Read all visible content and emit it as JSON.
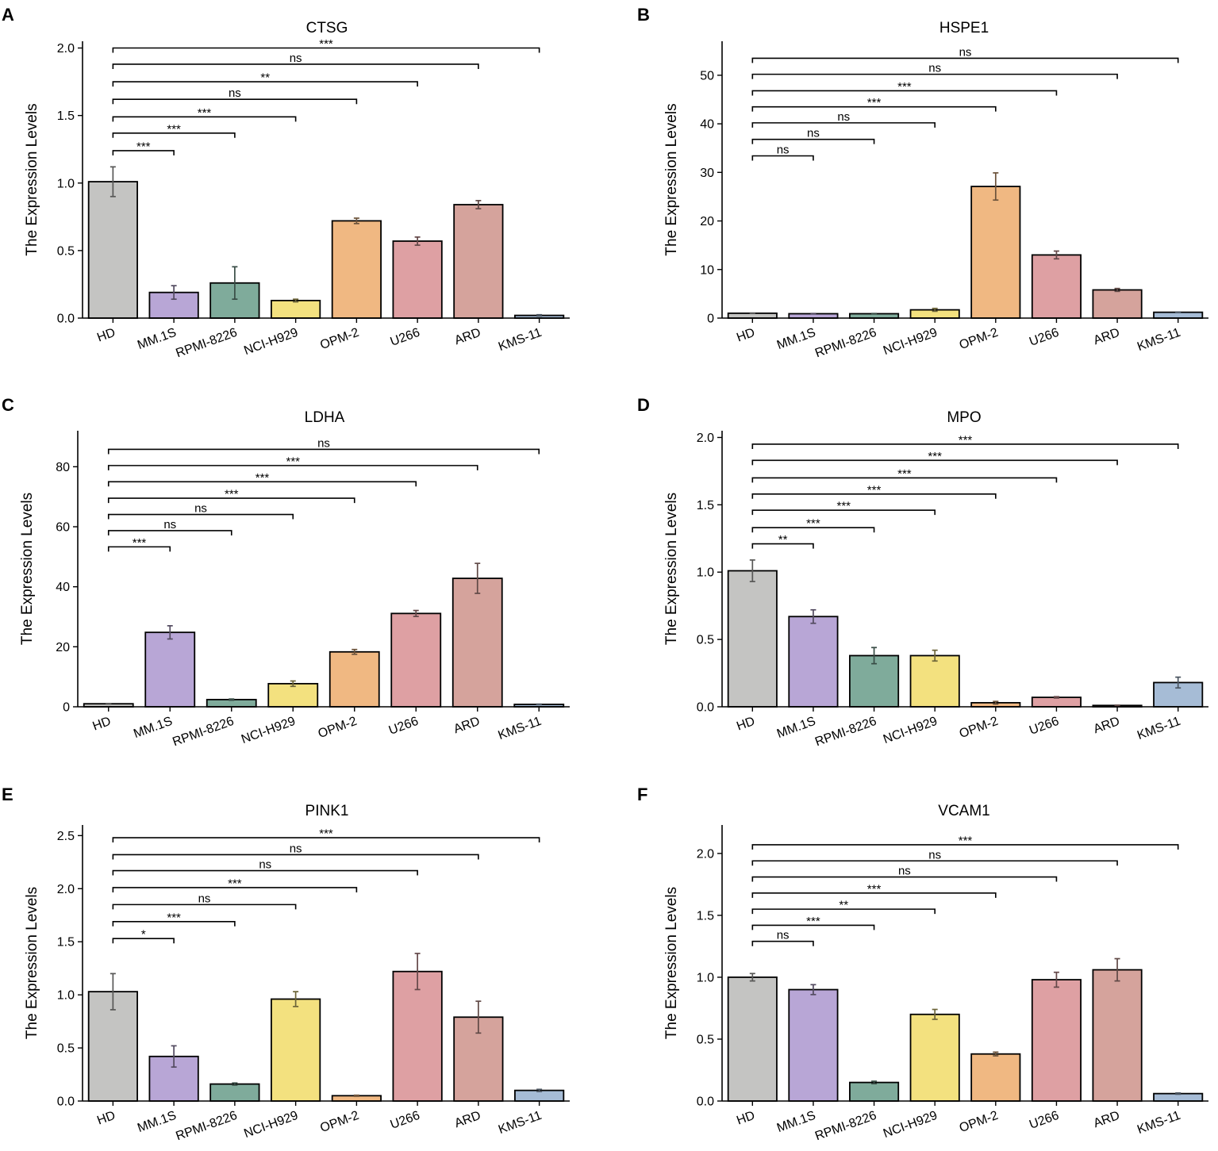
{
  "categories": [
    "HD",
    "MM.1S",
    "RPMI-8226",
    "NCI-H929",
    "OPM-2",
    "U266",
    "ARD",
    "KMS-11"
  ],
  "colors": [
    "#c4c4c2",
    "#b8a6d6",
    "#7fab9b",
    "#f3e17f",
    "#f0b882",
    "#dea0a3",
    "#d5a39c",
    "#a6bcd6"
  ],
  "chart_data": [
    {
      "panel": "A",
      "type": "bar",
      "title": "CTSG",
      "xlabel": "",
      "ylabel": "The Expression Levels",
      "ylim": [
        0,
        2.05
      ],
      "yticks": [
        "0.0",
        "0.5",
        "1.0",
        "1.5",
        "2.0"
      ],
      "values": [
        1.01,
        0.19,
        0.26,
        0.13,
        0.72,
        0.57,
        0.84,
        0.02
      ],
      "errors": [
        0.11,
        0.05,
        0.12,
        0.01,
        0.02,
        0.03,
        0.03,
        0.005
      ],
      "comparisons": [
        {
          "vs": "MM.1S",
          "y": 1.24,
          "label": "***"
        },
        {
          "vs": "RPMI-8226",
          "y": 1.37,
          "label": "***"
        },
        {
          "vs": "NCI-H929",
          "y": 1.49,
          "label": "***"
        },
        {
          "vs": "OPM-2",
          "y": 1.62,
          "label": "ns"
        },
        {
          "vs": "U266",
          "y": 1.75,
          "label": "**"
        },
        {
          "vs": "ARD",
          "y": 1.88,
          "label": "ns"
        },
        {
          "vs": "KMS-11",
          "y": 2.0,
          "label": "***"
        }
      ]
    },
    {
      "panel": "B",
      "type": "bar",
      "title": "HSPE1",
      "xlabel": "",
      "ylabel": "The Expression Levels",
      "ylim": [
        0,
        57
      ],
      "yticks": [
        "0",
        "10",
        "20",
        "30",
        "40",
        "50"
      ],
      "values": [
        1.0,
        0.9,
        0.9,
        1.7,
        27.1,
        13.0,
        5.8,
        1.2
      ],
      "errors": [
        0.05,
        0.05,
        0.05,
        0.3,
        2.8,
        0.8,
        0.3,
        0.05
      ],
      "comparisons": [
        {
          "vs": "MM.1S",
          "y": 33.4,
          "label": "ns"
        },
        {
          "vs": "RPMI-8226",
          "y": 36.8,
          "label": "ns"
        },
        {
          "vs": "NCI-H929",
          "y": 40.2,
          "label": "ns"
        },
        {
          "vs": "OPM-2",
          "y": 43.5,
          "label": "***"
        },
        {
          "vs": "U266",
          "y": 46.8,
          "label": "***"
        },
        {
          "vs": "ARD",
          "y": 50.2,
          "label": "ns"
        },
        {
          "vs": "KMS-11",
          "y": 53.5,
          "label": "ns"
        }
      ]
    },
    {
      "panel": "C",
      "type": "bar",
      "title": "LDHA",
      "xlabel": "",
      "ylabel": "The Expression Levels",
      "ylim": [
        0,
        92
      ],
      "yticks": [
        "0",
        "20",
        "40",
        "60",
        "80"
      ],
      "values": [
        1.0,
        24.8,
        2.4,
        7.7,
        18.3,
        31.1,
        42.8,
        0.8
      ],
      "errors": [
        0.1,
        2.2,
        0.2,
        0.9,
        0.8,
        1.0,
        5.0,
        0.1
      ],
      "comparisons": [
        {
          "vs": "MM.1S",
          "y": 53.3,
          "label": "***"
        },
        {
          "vs": "RPMI-8226",
          "y": 58.7,
          "label": "ns"
        },
        {
          "vs": "NCI-H929",
          "y": 64.1,
          "label": "ns"
        },
        {
          "vs": "OPM-2",
          "y": 69.5,
          "label": "***"
        },
        {
          "vs": "U266",
          "y": 75.0,
          "label": "***"
        },
        {
          "vs": "ARD",
          "y": 80.4,
          "label": "***"
        },
        {
          "vs": "KMS-11",
          "y": 85.8,
          "label": "ns"
        }
      ]
    },
    {
      "panel": "D",
      "type": "bar",
      "title": "MPO",
      "xlabel": "",
      "ylabel": "The Expression Levels",
      "ylim": [
        0,
        2.05
      ],
      "yticks": [
        "0.0",
        "0.5",
        "1.0",
        "1.5",
        "2.0"
      ],
      "values": [
        1.01,
        0.67,
        0.38,
        0.38,
        0.03,
        0.07,
        0.01,
        0.18
      ],
      "errors": [
        0.08,
        0.05,
        0.06,
        0.04,
        0.01,
        0.005,
        0.002,
        0.04
      ],
      "comparisons": [
        {
          "vs": "MM.1S",
          "y": 1.21,
          "label": "**"
        },
        {
          "vs": "RPMI-8226",
          "y": 1.33,
          "label": "***"
        },
        {
          "vs": "NCI-H929",
          "y": 1.46,
          "label": "***"
        },
        {
          "vs": "OPM-2",
          "y": 1.58,
          "label": "***"
        },
        {
          "vs": "U266",
          "y": 1.7,
          "label": "***"
        },
        {
          "vs": "ARD",
          "y": 1.83,
          "label": "***"
        },
        {
          "vs": "KMS-11",
          "y": 1.95,
          "label": "***"
        }
      ]
    },
    {
      "panel": "E",
      "type": "bar",
      "title": "PINK1",
      "xlabel": "",
      "ylabel": "The Expression Levels",
      "ylim": [
        0,
        2.6
      ],
      "yticks": [
        "0.0",
        "0.5",
        "1.0",
        "1.5",
        "2.0",
        "2.5"
      ],
      "values": [
        1.03,
        0.42,
        0.16,
        0.96,
        0.05,
        1.22,
        0.79,
        0.1
      ],
      "errors": [
        0.17,
        0.1,
        0.01,
        0.07,
        0.005,
        0.17,
        0.15,
        0.01
      ],
      "comparisons": [
        {
          "vs": "MM.1S",
          "y": 1.53,
          "label": "*"
        },
        {
          "vs": "RPMI-8226",
          "y": 1.69,
          "label": "***"
        },
        {
          "vs": "NCI-H929",
          "y": 1.85,
          "label": "ns"
        },
        {
          "vs": "OPM-2",
          "y": 2.01,
          "label": "***"
        },
        {
          "vs": "U266",
          "y": 2.17,
          "label": "ns"
        },
        {
          "vs": "ARD",
          "y": 2.32,
          "label": "ns"
        },
        {
          "vs": "KMS-11",
          "y": 2.48,
          "label": "***"
        }
      ]
    },
    {
      "panel": "F",
      "type": "bar",
      "title": "VCAM1",
      "xlabel": "",
      "ylabel": "The Expression Levels",
      "ylim": [
        0,
        2.23
      ],
      "yticks": [
        "0.0",
        "0.5",
        "1.0",
        "1.5",
        "2.0"
      ],
      "values": [
        1.0,
        0.9,
        0.15,
        0.7,
        0.38,
        0.98,
        1.06,
        0.06
      ],
      "errors": [
        0.03,
        0.04,
        0.01,
        0.04,
        0.015,
        0.06,
        0.09,
        0.005
      ],
      "comparisons": [
        {
          "vs": "MM.1S",
          "y": 1.29,
          "label": "ns"
        },
        {
          "vs": "RPMI-8226",
          "y": 1.42,
          "label": "***"
        },
        {
          "vs": "NCI-H929",
          "y": 1.55,
          "label": "**"
        },
        {
          "vs": "OPM-2",
          "y": 1.68,
          "label": "***"
        },
        {
          "vs": "U266",
          "y": 1.81,
          "label": "ns"
        },
        {
          "vs": "ARD",
          "y": 1.94,
          "label": "ns"
        },
        {
          "vs": "KMS-11",
          "y": 2.07,
          "label": "***"
        }
      ]
    }
  ]
}
